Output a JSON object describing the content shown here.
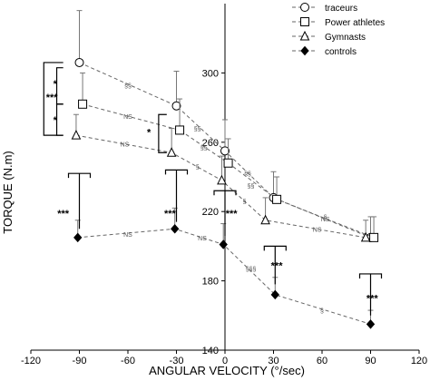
{
  "chart_data": {
    "type": "line",
    "xlabel": "ANGULAR VELOCITY (°/sec)",
    "ylabel": "TORQUE (N.m)",
    "xlim": [
      -120,
      120
    ],
    "ylim": [
      140,
      340
    ],
    "xticks": [
      -120,
      -90,
      -60,
      -30,
      0,
      30,
      60,
      90,
      120
    ],
    "yticks": [
      140,
      180,
      220,
      260,
      300
    ],
    "legend_position": "top-right",
    "series": [
      {
        "name": "traceurs",
        "marker": "circle",
        "x": [
          -90,
          -30,
          0,
          30,
          90
        ],
        "y": [
          306,
          281,
          255,
          228,
          205
        ],
        "err": [
          30,
          20,
          18,
          15,
          12
        ]
      },
      {
        "name": "Power athletes",
        "marker": "square",
        "x": [
          -88,
          -28,
          2,
          32,
          92
        ],
        "y": [
          282,
          267,
          248,
          227,
          205
        ],
        "err": [
          18,
          18,
          14,
          13,
          12
        ]
      },
      {
        "name": "Gymnasts",
        "marker": "triangle",
        "x": [
          -92,
          -33,
          -2,
          25,
          87
        ],
        "y": [
          264,
          254,
          238,
          215,
          205
        ],
        "err": [
          12,
          14,
          14,
          13,
          10
        ]
      },
      {
        "name": "controls",
        "marker": "diamond",
        "x": [
          -91,
          -31,
          -1,
          31,
          90
        ],
        "y": [
          205,
          210,
          201,
          172,
          155
        ],
        "err": [
          10,
          12,
          12,
          10,
          8
        ]
      }
    ],
    "annotations": [
      {
        "text": "§§",
        "x": -60,
        "y": 293
      },
      {
        "text": "§§",
        "x": -17,
        "y": 268
      },
      {
        "text": "§§",
        "x": 14,
        "y": 242
      },
      {
        "text": "§",
        "x": 62,
        "y": 217
      },
      {
        "text": "NS",
        "x": -60,
        "y": 275
      },
      {
        "text": "§§",
        "x": -13,
        "y": 257
      },
      {
        "text": "§§",
        "x": 16,
        "y": 235
      },
      {
        "text": "NS",
        "x": 62,
        "y": 216
      },
      {
        "text": "NS",
        "x": -62,
        "y": 259
      },
      {
        "text": "§",
        "x": -17,
        "y": 246
      },
      {
        "text": "§",
        "x": 12,
        "y": 226
      },
      {
        "text": "NS",
        "x": 57,
        "y": 210
      },
      {
        "text": "NS",
        "x": -60,
        "y": 207
      },
      {
        "text": "NS",
        "x": -14,
        "y": 205
      },
      {
        "text": "§§§",
        "x": 16,
        "y": 187
      },
      {
        "text": "§",
        "x": 60,
        "y": 163
      }
    ],
    "significance": [
      {
        "text": "***",
        "x": -107,
        "y": 286
      },
      {
        "text": "*",
        "x": -105,
        "y": 294
      },
      {
        "text": "*",
        "x": -105,
        "y": 273
      },
      {
        "text": "*",
        "x": -47,
        "y": 266
      },
      {
        "text": "***",
        "x": -100,
        "y": 219
      },
      {
        "text": "***",
        "x": -34,
        "y": 219
      },
      {
        "text": "***",
        "x": 4,
        "y": 219
      },
      {
        "text": "***",
        "x": 32,
        "y": 189
      },
      {
        "text": "***",
        "x": 91,
        "y": 170
      }
    ]
  }
}
